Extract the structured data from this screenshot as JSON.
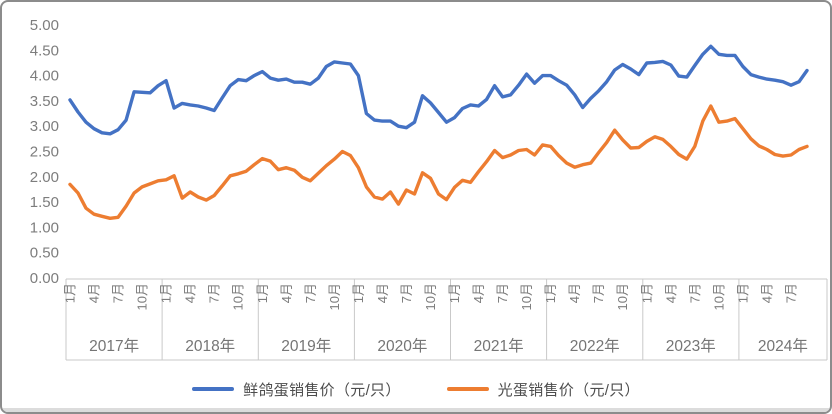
{
  "chart_data": {
    "type": "line",
    "title": "",
    "x": {
      "unit": "month",
      "start": "2017-01",
      "end": "2024-09",
      "month_tick_labels": [
        "1月",
        "4月",
        "7月",
        "10月"
      ],
      "year_groups": [
        {
          "label": "2017年",
          "months": 12
        },
        {
          "label": "2018年",
          "months": 12
        },
        {
          "label": "2019年",
          "months": 12
        },
        {
          "label": "2020年",
          "months": 12
        },
        {
          "label": "2021年",
          "months": 12
        },
        {
          "label": "2022年",
          "months": 12
        },
        {
          "label": "2023年",
          "months": 12
        },
        {
          "label": "2024年",
          "months": 9
        }
      ]
    },
    "y": {
      "min": 0,
      "max": 5,
      "step": 0.5,
      "tick_labels": [
        "0.00",
        "0.50",
        "1.00",
        "1.50",
        "2.00",
        "2.50",
        "3.00",
        "3.50",
        "4.00",
        "4.50",
        "5.00"
      ]
    },
    "grid": false,
    "legend_position": "bottom",
    "series": [
      {
        "key": "fresh-pigeon-egg",
        "name": "鲜鸽蛋销售价（元/只）",
        "color": "#4472C4",
        "values": [
          3.52,
          3.28,
          3.08,
          2.95,
          2.87,
          2.85,
          2.93,
          3.12,
          3.68,
          3.67,
          3.66,
          3.8,
          3.9,
          3.36,
          3.45,
          3.42,
          3.4,
          3.36,
          3.31,
          3.56,
          3.8,
          3.92,
          3.9,
          4.0,
          4.08,
          3.95,
          3.91,
          3.93,
          3.87,
          3.87,
          3.83,
          3.95,
          4.18,
          4.27,
          4.25,
          4.23,
          4.0,
          3.25,
          3.12,
          3.1,
          3.1,
          3.0,
          2.97,
          3.08,
          3.6,
          3.46,
          3.27,
          3.08,
          3.17,
          3.35,
          3.42,
          3.4,
          3.53,
          3.8,
          3.58,
          3.62,
          3.81,
          4.03,
          3.85,
          4.0,
          4.0,
          3.9,
          3.81,
          3.62,
          3.37,
          3.55,
          3.7,
          3.88,
          4.11,
          4.22,
          4.13,
          4.02,
          4.25,
          4.26,
          4.28,
          4.21,
          3.99,
          3.97,
          4.2,
          4.42,
          4.58,
          4.42,
          4.4,
          4.4,
          4.18,
          4.02,
          3.97,
          3.93,
          3.91,
          3.88,
          3.81,
          3.88,
          4.1
        ]
      },
      {
        "key": "guang-dan",
        "name": "光蛋销售价（元/只）",
        "color": "#ED7D31",
        "values": [
          1.85,
          1.68,
          1.38,
          1.26,
          1.22,
          1.18,
          1.2,
          1.42,
          1.68,
          1.8,
          1.86,
          1.92,
          1.94,
          2.02,
          1.58,
          1.7,
          1.6,
          1.54,
          1.63,
          1.82,
          2.02,
          2.06,
          2.11,
          2.24,
          2.36,
          2.31,
          2.14,
          2.18,
          2.13,
          1.99,
          1.92,
          2.07,
          2.22,
          2.35,
          2.5,
          2.42,
          2.18,
          1.8,
          1.6,
          1.56,
          1.7,
          1.46,
          1.74,
          1.66,
          2.08,
          1.97,
          1.66,
          1.55,
          1.79,
          1.93,
          1.89,
          2.1,
          2.3,
          2.52,
          2.38,
          2.43,
          2.52,
          2.54,
          2.43,
          2.63,
          2.6,
          2.42,
          2.27,
          2.19,
          2.24,
          2.27,
          2.48,
          2.68,
          2.92,
          2.73,
          2.57,
          2.58,
          2.7,
          2.79,
          2.74,
          2.6,
          2.44,
          2.35,
          2.6,
          3.1,
          3.4,
          3.08,
          3.1,
          3.15,
          2.95,
          2.75,
          2.61,
          2.54,
          2.44,
          2.41,
          2.43,
          2.54,
          2.6
        ]
      }
    ],
    "colors": {
      "axis_line": "#c9c9c9",
      "tick_text": "#7d7d7d",
      "legend_text": "#4d4d4d"
    }
  }
}
